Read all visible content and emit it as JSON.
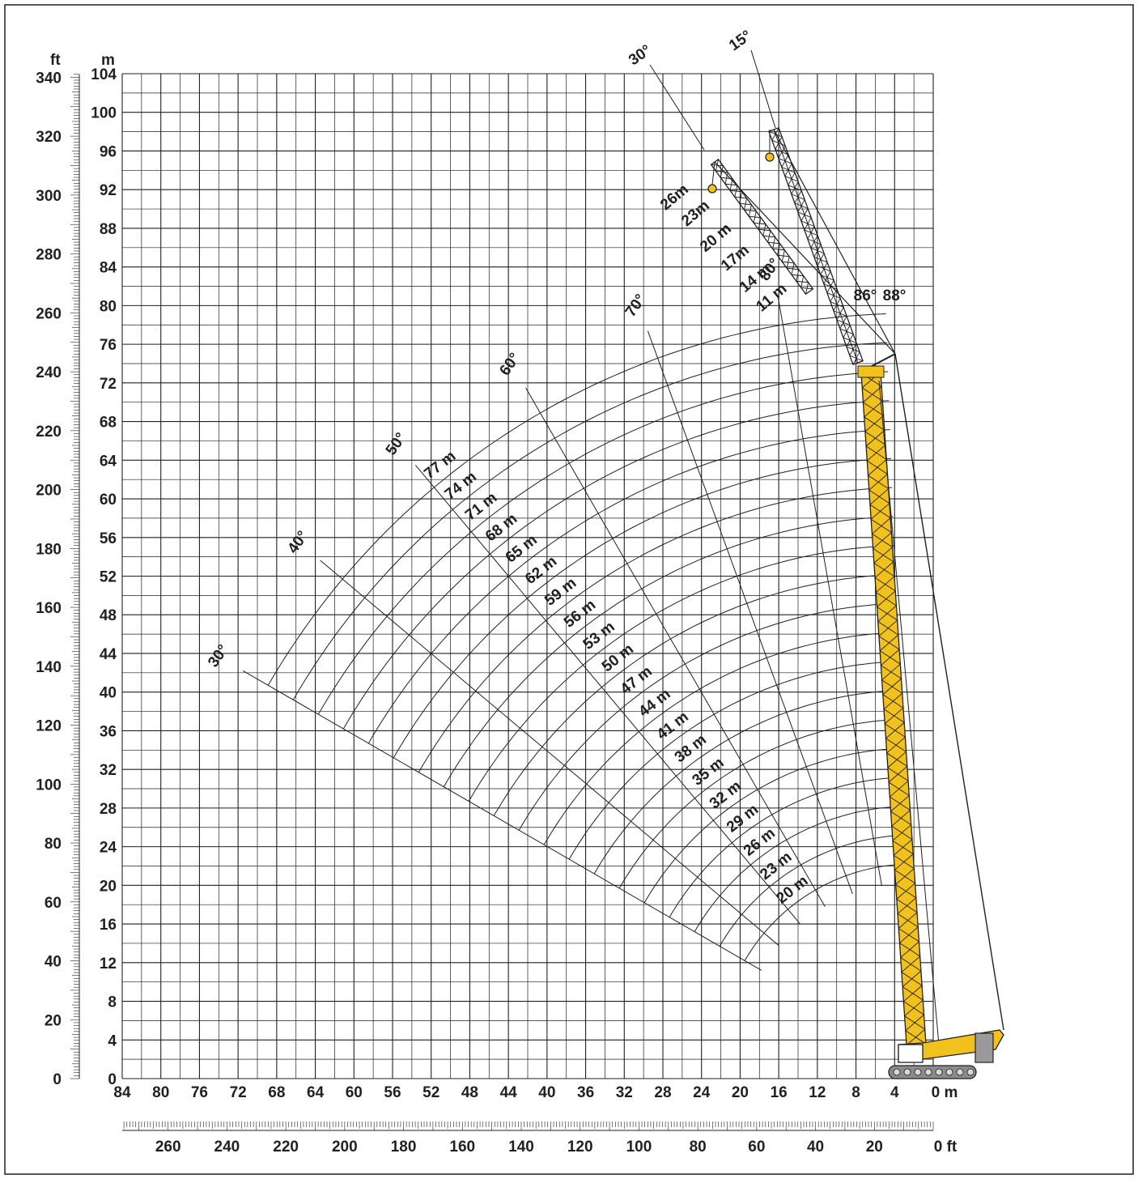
{
  "chart_data": {
    "type": "range-chart",
    "units": {
      "left_outer": "ft",
      "left_inner": "m",
      "bottom_m": "0 m",
      "bottom_ft": "0 ft"
    },
    "y_axis_m": {
      "range": [
        0,
        104
      ],
      "ticks": [
        "0",
        "4",
        "8",
        "12",
        "16",
        "20",
        "24",
        "28",
        "32",
        "36",
        "40",
        "44",
        "48",
        "52",
        "56",
        "60",
        "64",
        "68",
        "72",
        "76",
        "80",
        "84",
        "88",
        "92",
        "96",
        "100",
        "104"
      ]
    },
    "y_axis_ft": {
      "range": [
        0,
        341.2
      ],
      "ticks": [
        "0",
        "20",
        "40",
        "60",
        "80",
        "100",
        "120",
        "140",
        "160",
        "180",
        "200",
        "220",
        "240",
        "260",
        "280",
        "300",
        "320",
        "340"
      ]
    },
    "x_axis_m": {
      "range": [
        84,
        0
      ],
      "ticks": [
        "84",
        "80",
        "76",
        "72",
        "68",
        "64",
        "60",
        "56",
        "52",
        "48",
        "44",
        "40",
        "36",
        "32",
        "28",
        "24",
        "20",
        "16",
        "12",
        "8",
        "4",
        "0 m"
      ]
    },
    "x_axis_ft": {
      "range": [
        275.6,
        0
      ],
      "ticks": [
        "260",
        "240",
        "220",
        "200",
        "180",
        "160",
        "140",
        "120",
        "100",
        "80",
        "60",
        "40",
        "20",
        "0 ft"
      ]
    },
    "grid": true,
    "main_boom": {
      "pivot_m": [
        2.2,
        2.2
      ],
      "tip_m": [
        4.5,
        72.5
      ],
      "tip_angle_labels": [
        "86°",
        "88°"
      ],
      "lengths_m": [
        20,
        23,
        26,
        29,
        32,
        35,
        38,
        41,
        44,
        47,
        50,
        53,
        56,
        59,
        62,
        65,
        68,
        71,
        74,
        77
      ],
      "length_labels": [
        "20 m",
        "23 m",
        "26 m",
        "29 m",
        "32 m",
        "35 m",
        "38 m",
        "41 m",
        "44 m",
        "47 m",
        "50 m",
        "53 m",
        "56 m",
        "59 m",
        "62 m",
        "65 m",
        "68 m",
        "71 m",
        "74 m",
        "77 m"
      ],
      "angle_lines_deg": [
        30,
        40,
        50,
        60,
        70,
        80
      ],
      "angle_labels": [
        "30°",
        "40°",
        "50°",
        "60°",
        "70°",
        "80°"
      ]
    },
    "luffing_jib": {
      "lengths_m": [
        11,
        14,
        17,
        20,
        23,
        26
      ],
      "length_labels": [
        "11 m",
        "14 m",
        "17m",
        "20 m",
        "23m",
        "26m"
      ],
      "angle_labels": [
        "30°",
        "15°"
      ],
      "jib_tips_m": [
        [
          22.6,
          94.6
        ],
        [
          16.5,
          98.2
        ]
      ]
    },
    "colors": {
      "boom": "#f1c21b",
      "lines": "#231f20",
      "grid": "#231f20",
      "border": "#231f20"
    }
  },
  "labels": {
    "ft_unit": "ft",
    "m_unit": "m"
  }
}
